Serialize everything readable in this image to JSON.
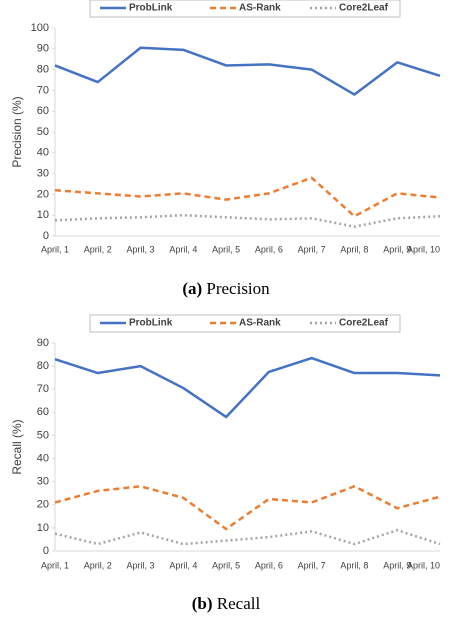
{
  "chart_data": [
    {
      "type": "line",
      "caption_label": "(a)",
      "caption": "Precision",
      "y_label": "Precision (%)",
      "categories": [
        "April, 1",
        "April, 2",
        "April, 3",
        "April, 4",
        "April, 5",
        "April, 6",
        "April, 7",
        "April, 8",
        "April, 9",
        "April, 10"
      ],
      "series": [
        {
          "name": "ProbLink",
          "color": "#4472c4",
          "dash": "none",
          "values": [
            82,
            74,
            90.5,
            89.5,
            82,
            82.5,
            80,
            68,
            83.5,
            77
          ]
        },
        {
          "name": "AS-Rank",
          "color": "#ed7d31",
          "dash": "6 4",
          "values": [
            22,
            20.5,
            19,
            20.5,
            17.5,
            20.5,
            28,
            9.5,
            20.5,
            18.5
          ]
        },
        {
          "name": "Core2Leaf",
          "color": "#a5a5a5",
          "dash": "2 3",
          "values": [
            7.5,
            8.5,
            9,
            10,
            9,
            8,
            8.5,
            4.5,
            8.5,
            9.5
          ]
        }
      ],
      "ylim": [
        0,
        100
      ],
      "yticks": [
        0,
        10,
        20,
        30,
        40,
        50,
        60,
        70,
        80,
        90,
        100
      ]
    },
    {
      "type": "line",
      "caption_label": "(b)",
      "caption": "Recall",
      "y_label": "Recall (%)",
      "categories": [
        "April, 1",
        "April, 2",
        "April, 3",
        "April, 4",
        "April, 5",
        "April, 6",
        "April, 7",
        "April, 8",
        "April, 9",
        "April, 10"
      ],
      "series": [
        {
          "name": "ProbLink",
          "color": "#4472c4",
          "dash": "none",
          "values": [
            83,
            77,
            80,
            70.5,
            58,
            77.5,
            83.5,
            77,
            77,
            76
          ]
        },
        {
          "name": "AS-Rank",
          "color": "#ed7d31",
          "dash": "6 4",
          "values": [
            21,
            26,
            28,
            23,
            9.5,
            22.5,
            21,
            28,
            18.5,
            23.5
          ]
        },
        {
          "name": "Core2Leaf",
          "color": "#a5a5a5",
          "dash": "2 3",
          "values": [
            7.5,
            3,
            8,
            3,
            4.5,
            6,
            8.5,
            3,
            9,
            3
          ]
        }
      ],
      "ylim": [
        0,
        90
      ],
      "yticks": [
        0,
        10,
        20,
        30,
        40,
        50,
        60,
        70,
        80,
        90
      ]
    }
  ]
}
